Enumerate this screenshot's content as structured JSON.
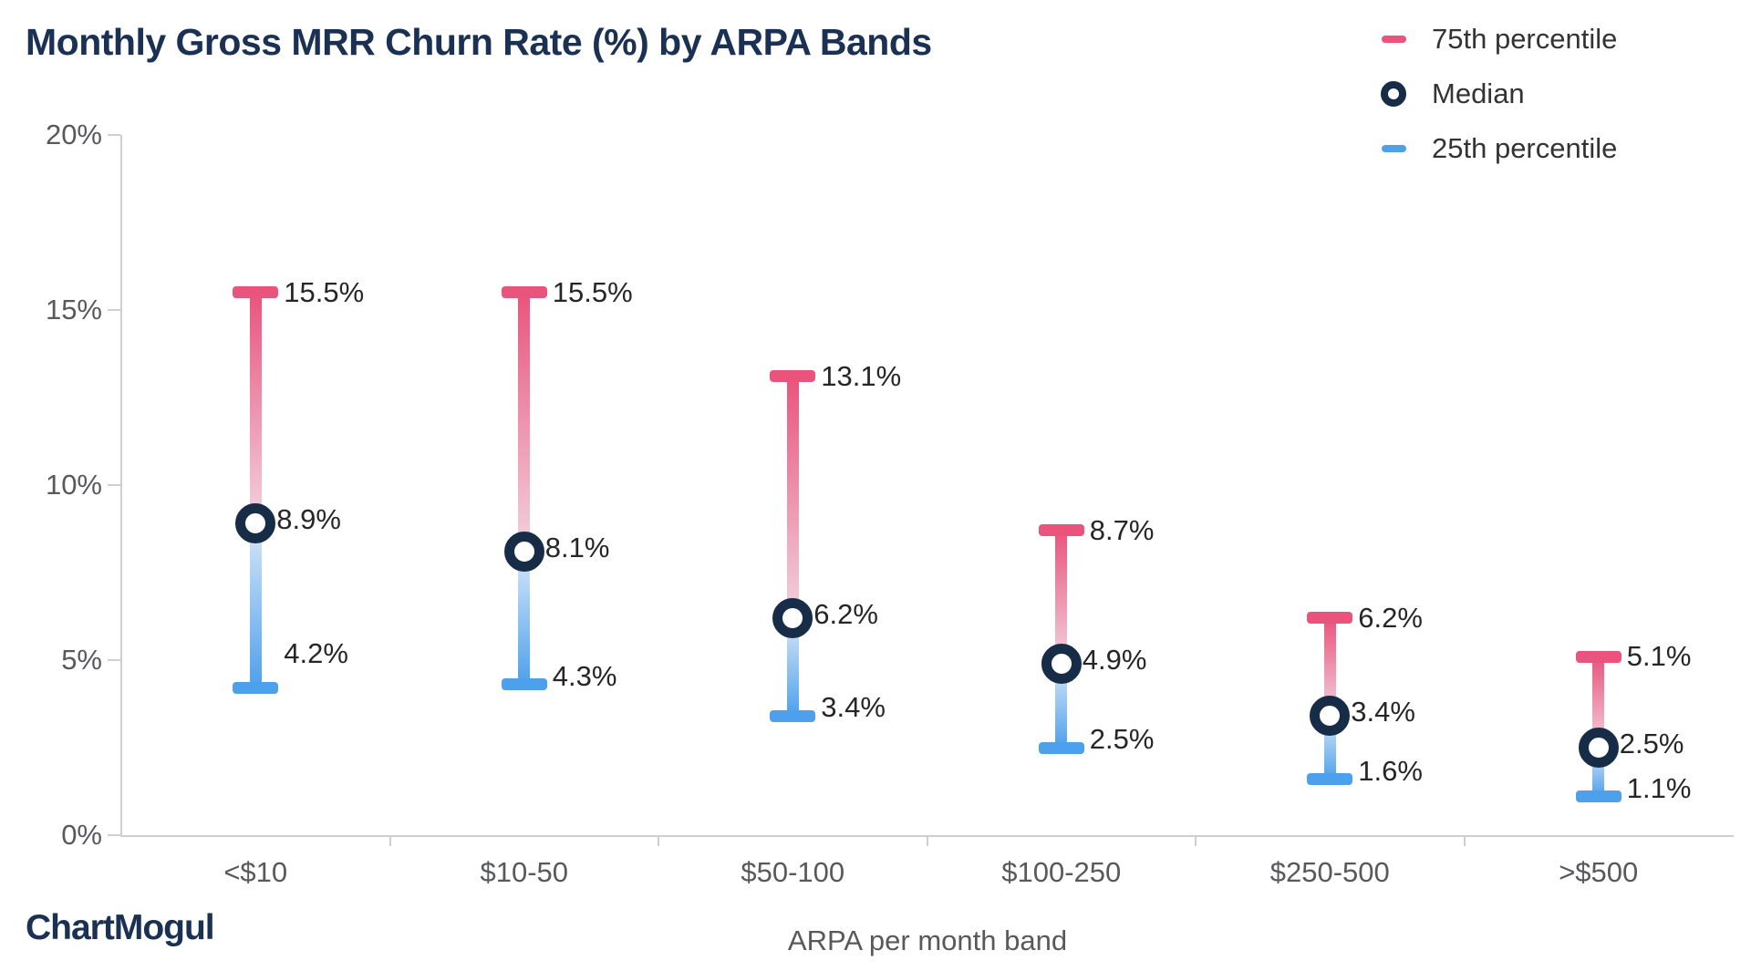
{
  "title": "Monthly Gross MRR Churn Rate (%) by ARPA Bands",
  "branding": {
    "logo_text": "ChartMogul"
  },
  "legend": [
    {
      "label": "75th percentile",
      "marker": "dash-icon",
      "color": "#E9537C"
    },
    {
      "label": "Median",
      "marker": "ring-icon",
      "color": "#172C46"
    },
    {
      "label": "25th percentile",
      "marker": "dash-icon",
      "color": "#4DA0EB"
    }
  ],
  "colors": {
    "accent_pink": "#E9537C",
    "accent_blue": "#4DA0EB",
    "pale_pink": "#F2D3DF",
    "pale_blue": "#D9E7F8",
    "ring_navy": "#172C46",
    "title_navy": "#1B3153",
    "axis_gray": "#CFCFCF",
    "tick_text_gray": "#58595B",
    "data_label_dark": "#262626"
  },
  "chart_data": {
    "type": "range-bar",
    "title": "Monthly Gross MRR Churn Rate (%) by ARPA Bands",
    "xlabel": "ARPA per month band",
    "ylabel": "",
    "ylim": [
      0,
      20
    ],
    "yticks": [
      "0%",
      "5%",
      "10%",
      "15%",
      "20%"
    ],
    "grid": false,
    "legend_position": "top-right",
    "categories": [
      "<$10",
      "$10-50",
      "$50-100",
      "$100-250",
      "$250-500",
      ">$500"
    ],
    "series": [
      {
        "name": "75th percentile",
        "values": [
          15.5,
          15.5,
          13.1,
          8.7,
          6.2,
          5.1
        ]
      },
      {
        "name": "Median",
        "values": [
          8.9,
          8.1,
          6.2,
          4.9,
          3.4,
          2.5
        ]
      },
      {
        "name": "25th percentile",
        "values": [
          4.2,
          4.3,
          3.4,
          2.5,
          1.6,
          1.1
        ]
      }
    ],
    "labels": {
      "p75": [
        "15.5%",
        "15.5%",
        "13.1%",
        "8.7%",
        "6.2%",
        "5.1%"
      ],
      "median": [
        "8.9%",
        "8.1%",
        "6.2%",
        "4.9%",
        "3.4%",
        "2.5%"
      ],
      "p25": [
        "4.2%",
        "4.3%",
        "3.4%",
        "2.5%",
        "1.6%",
        "1.1%"
      ]
    },
    "p25_label_above_cap": [
      true,
      false,
      false,
      false,
      false,
      false
    ]
  }
}
